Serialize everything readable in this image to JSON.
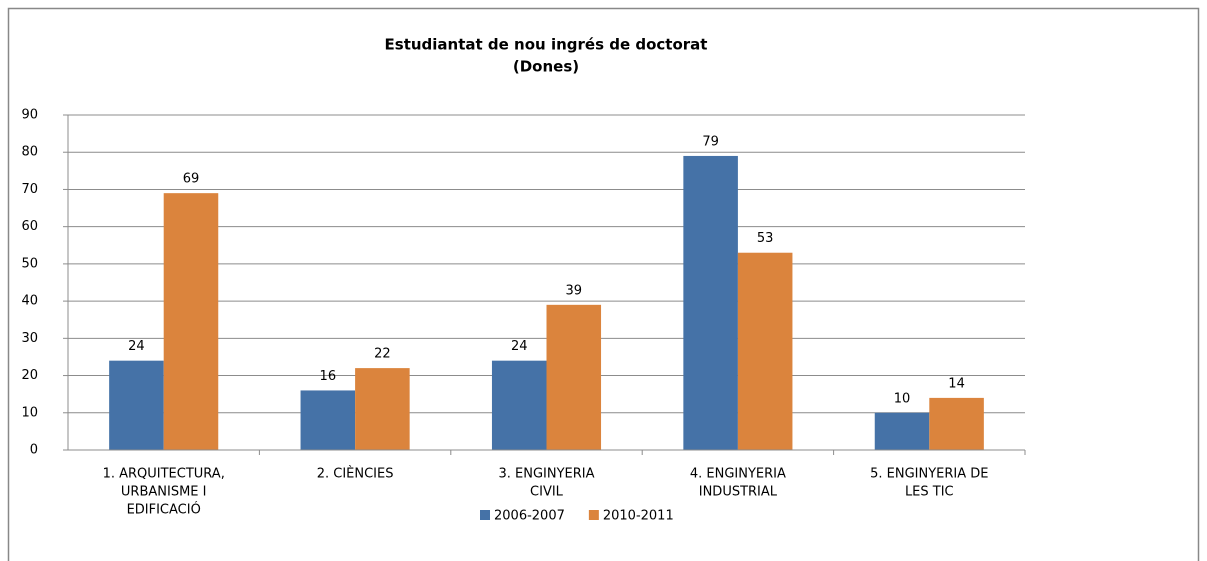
{
  "chart_data": {
    "type": "bar",
    "title": [
      "Estudiantat de nou ingrés de doctorat",
      "(Dones)"
    ],
    "categories": [
      [
        "1. ARQUITECTURA,",
        "URBANISME I",
        "EDIFICACIÓ"
      ],
      [
        "2. CIÈNCIES"
      ],
      [
        "3. ENGINYERIA",
        "CIVIL"
      ],
      [
        "4. ENGINYERIA",
        "INDUSTRIAL"
      ],
      [
        "5. ENGINYERIA  DE",
        "LES TIC"
      ]
    ],
    "series": [
      {
        "name": "2006-2007",
        "color": "#4572a7",
        "values": [
          24,
          16,
          24,
          79,
          10
        ]
      },
      {
        "name": "2010-2011",
        "color": "#db843d",
        "values": [
          69,
          22,
          39,
          53,
          14
        ]
      }
    ],
    "ylim": [
      0,
      90
    ],
    "yticks": [
      0,
      10,
      20,
      30,
      40,
      50,
      60,
      70,
      80,
      90
    ],
    "grid": true,
    "legend": "bottom"
  }
}
